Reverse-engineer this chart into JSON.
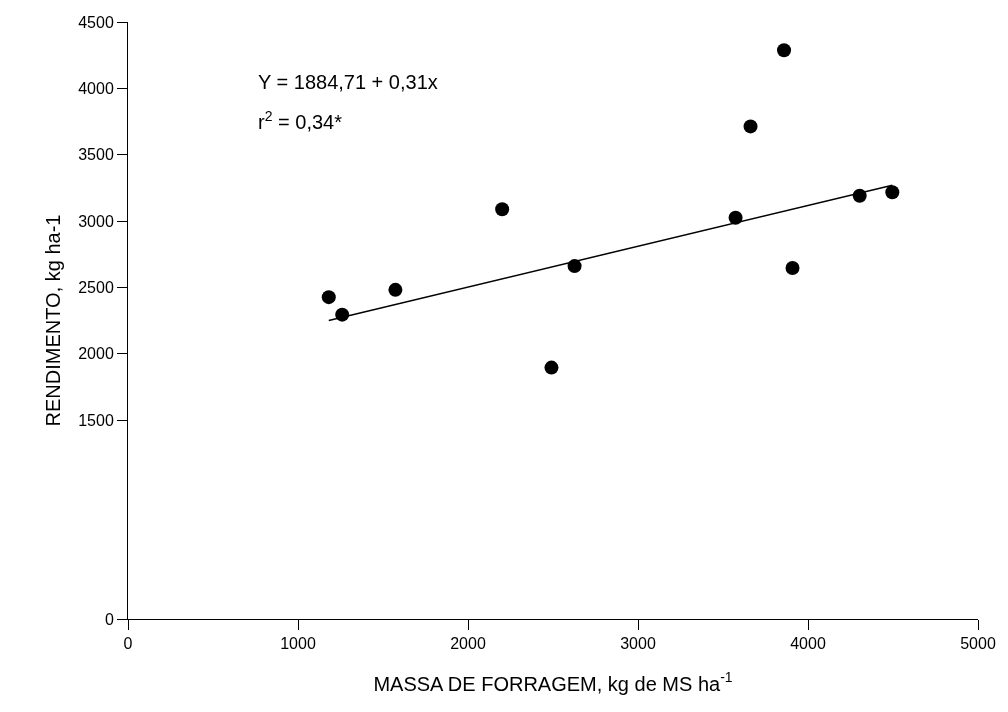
{
  "chart_data": {
    "type": "scatter",
    "xlabel": "MASSA DE FORRAGEM, kg de MS ha$^{-1}$",
    "ylabel": "RENDIMENTO, kg ha-1",
    "annotations": [
      "Y = 1884,71 + 0,31x",
      "r$^{2}$ = 0,34*"
    ],
    "series": [
      {
        "type": "scatter",
        "color": "#000000",
        "marker": "circle",
        "x": [
          1181,
          1260,
          1573,
          2201,
          2491,
          2627,
          3574,
          3662,
          3859,
          3909,
          4304,
          4496
        ],
        "values": [
          2426,
          2294,
          2481,
          3089,
          1895,
          2660,
          3025,
          3713,
          4287,
          2646,
          3190,
          3217
        ]
      },
      {
        "type": "line",
        "color": "#000000",
        "line_style": "solid",
        "x": [
          1181,
          4496
        ],
        "values": [
          2250,
          3270
        ]
      }
    ],
    "xlim": [
      0,
      5000
    ],
    "xticks": [
      0,
      1000,
      2000,
      3000,
      4000,
      5000
    ],
    "ylim": [
      0,
      4500
    ],
    "yticks": [
      0,
      1500,
      2000,
      2500,
      3000,
      3500,
      4000,
      4500
    ],
    "legend": false
  }
}
